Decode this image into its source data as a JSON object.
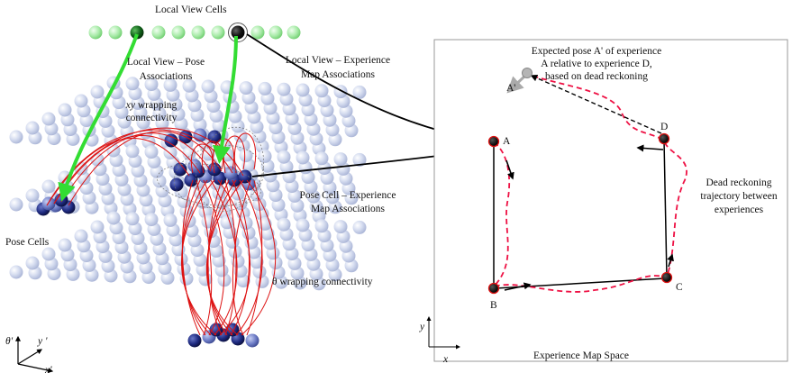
{
  "labels": {
    "local_view_cells": "Local View Cells",
    "local_view_pose_1": "Local View – Pose",
    "local_view_pose_2": "Associations",
    "local_view_exp_1": "Local View – Experience",
    "local_view_exp_2": "Map Associations",
    "xy_wrap_1": "xy wrapping",
    "xy_wrap_2": "connectivity",
    "pose_cell_exp_1": "Pose Cell – Experience",
    "pose_cell_exp_2": "Map Associations",
    "pose_cells": "Pose Cells",
    "theta_wrap": "θ wrapping connectivity",
    "expected_pose_1": "Expected pose A' of experience",
    "expected_pose_2": "A relative to experience D,",
    "expected_pose_3": "based on dead reckoning",
    "dead_reck_1": "Dead reckoning",
    "dead_reck_2": "trajectory between",
    "dead_reck_3": "experiences",
    "exp_map_space": "Experience Map Space",
    "node_a": "A",
    "node_a_prime": "A'",
    "node_b": "B",
    "node_c": "C",
    "node_d": "D",
    "axis_theta": "θ'",
    "axis_y": "y '",
    "axis_x": "x'",
    "map_axis_y": "y",
    "map_axis_x": "x"
  },
  "colors": {
    "cell_light": "#cfd8ec",
    "cell_active": "#1a1f5c",
    "view_cell": "#9be79b",
    "view_cell_active": "#0d5a12",
    "green_arrow": "#33dd33",
    "red_link": "#dd1111",
    "dead_reckoning": "#ee1144",
    "black": "#000000"
  }
}
